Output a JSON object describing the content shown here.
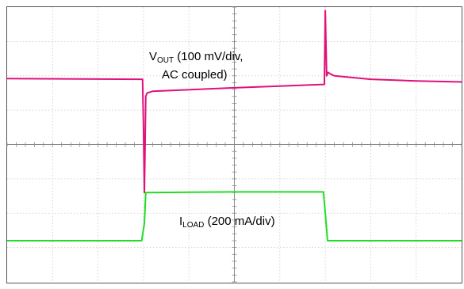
{
  "chart_data": {
    "type": "line",
    "grid": true,
    "divisions": {
      "x": 10,
      "y": 8
    },
    "title": "",
    "xlabel": "",
    "ylabel": "",
    "xlim": [
      0,
      10
    ],
    "ylim": [
      -4,
      4
    ],
    "series": [
      {
        "name": "VOUT",
        "color": "#e0117a",
        "x": [
          0,
          2.9,
          2.98,
          3.0,
          3.02,
          3.05,
          3.08,
          3.2,
          5.0,
          6.98,
          7.0,
          7.03,
          7.06,
          7.12,
          7.2,
          8.0,
          9.0,
          10.0
        ],
        "y": [
          1.92,
          1.9,
          1.9,
          0.5,
          -1.4,
          1.4,
          1.5,
          1.55,
          1.65,
          1.75,
          3.9,
          2.0,
          2.1,
          2.05,
          2.0,
          1.9,
          1.85,
          1.82
        ]
      },
      {
        "name": "ILOAD",
        "color": "#22dd22",
        "x": [
          0,
          2.96,
          3.02,
          3.05,
          5.0,
          6.96,
          7.0,
          7.05,
          10.0
        ],
        "y": [
          -2.8,
          -2.8,
          -2.3,
          -1.4,
          -1.38,
          -1.38,
          -2.0,
          -2.8,
          -2.8
        ]
      }
    ],
    "annotations": [
      {
        "id": "vout",
        "main": "V",
        "sub": "OUT",
        "rest": " (100 mV/div,",
        "line2": "AC coupled)",
        "x": 3.75,
        "y": 2.5
      },
      {
        "id": "iload",
        "main": "I",
        "sub": "LOAD",
        "rest": " (200 mA/div)",
        "x": 3.7,
        "y": -2.1
      }
    ]
  }
}
